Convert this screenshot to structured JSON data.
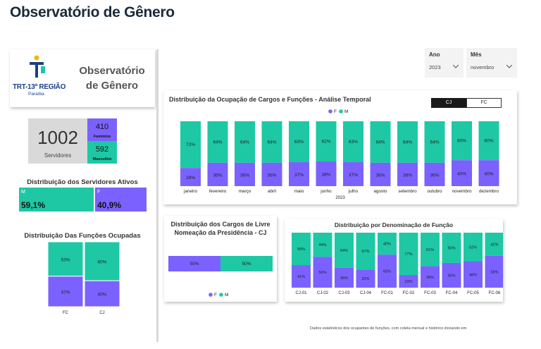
{
  "title": "Observatório de Gênero",
  "logo": {
    "org": "TRT-13ª REGIÃO",
    "sub": "Paraíba",
    "label_line1": "Observatório",
    "label_line2": "de Gênero"
  },
  "kpi": {
    "total": "1002",
    "total_label": "Servidores",
    "fem_value": "410",
    "fem_label": "Feminino",
    "masc_value": "592",
    "masc_label": "Masculino"
  },
  "servidores": {
    "title": "Distribuição dos Servidores Ativos",
    "m_label": "M",
    "m_value": "59,1%",
    "f_label": "F",
    "f_value": "40,9%",
    "m_share": 0.591
  },
  "funcoes": {
    "title": "Distribuição Das Funções Ocupadas",
    "categories": [
      "FC",
      "CJ"
    ],
    "masc": [
      "53%",
      "60%"
    ],
    "fem": [
      "47%",
      "40%"
    ],
    "masc_share": [
      0.53,
      0.6
    ]
  },
  "slicers": {
    "ano_label": "Ano",
    "ano_value": "2023",
    "mes_label": "Mês",
    "mes_value": "novembro"
  },
  "toggle": {
    "cj": "CJ",
    "fc": "FC"
  },
  "colors": {
    "female": "#7b61ff",
    "male": "#1ec8a5",
    "dark": "#1a1a1a"
  },
  "chart_data": [
    {
      "type": "bar",
      "title": "Distribuição da Ocupação de Cargos e Funções - Análise Temporal",
      "xlabel": "2023",
      "legend": [
        "F",
        "M"
      ],
      "categories": [
        "janeiro",
        "fevereiro",
        "março",
        "abril",
        "maio",
        "junho",
        "julho",
        "agosto",
        "setembro",
        "outubro",
        "novembro",
        "dezembro"
      ],
      "series": [
        {
          "name": "F",
          "values": [
            28,
            36,
            36,
            36,
            37,
            38,
            37,
            36,
            36,
            36,
            40,
            40
          ]
        },
        {
          "name": "M",
          "values": [
            72,
            64,
            64,
            64,
            63,
            62,
            63,
            64,
            64,
            64,
            60,
            60
          ]
        }
      ]
    },
    {
      "type": "bar",
      "title": "Distribuição dos Cargos de Livre Nomeação da Presidência - CJ",
      "legend": [
        "F",
        "M"
      ],
      "series": [
        {
          "name": "F",
          "values": [
            50
          ]
        },
        {
          "name": "M",
          "values": [
            50
          ]
        }
      ]
    },
    {
      "type": "bar",
      "title": "Distribuição por Denominação de Função",
      "categories": [
        "CJ-01",
        "CJ-02",
        "CJ-03",
        "CJ-04",
        "FC-01",
        "FC-02",
        "FC-03",
        "FC-04",
        "FC-05",
        "FC-06"
      ],
      "series": [
        {
          "name": "F",
          "values": [
            41,
            56,
            36,
            33,
            60,
            23,
            39,
            45,
            48,
            58
          ]
        },
        {
          "name": "M",
          "values": [
            59,
            44,
            64,
            67,
            40,
            77,
            61,
            55,
            52,
            42
          ]
        }
      ]
    }
  ],
  "footer": "Dados estatísticos dos ocupantes de funções, com coleta mensal e histórico iniciando em"
}
